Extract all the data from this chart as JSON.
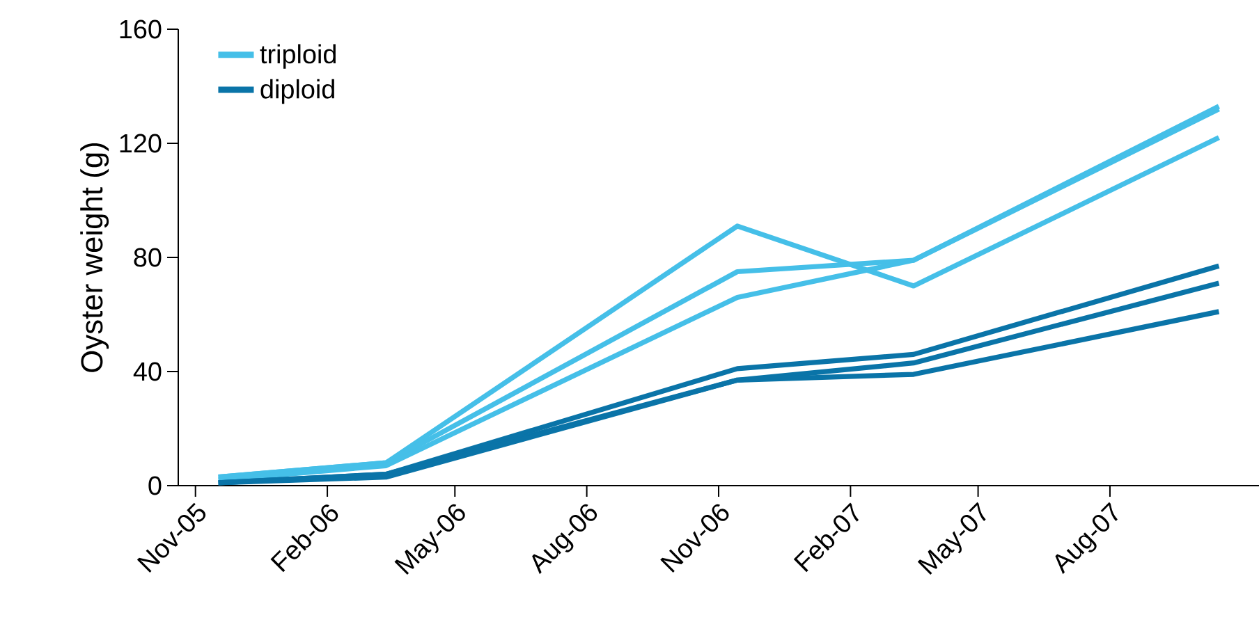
{
  "chart_data": {
    "type": "line",
    "ylabel": "Oyster weight (g)",
    "xlim": [
      "2005-10-20",
      "2007-11-13"
    ],
    "xticks": [
      {
        "value": "2005-11-01",
        "label": "Nov-05"
      },
      {
        "value": "2006-02-01",
        "label": "Feb-06"
      },
      {
        "value": "2006-05-01",
        "label": "May-06"
      },
      {
        "value": "2006-08-01",
        "label": "Aug-06"
      },
      {
        "value": "2006-11-01",
        "label": "Nov-06"
      },
      {
        "value": "2007-02-01",
        "label": "Feb-07"
      },
      {
        "value": "2007-05-01",
        "label": "May-07"
      },
      {
        "value": "2007-08-01",
        "label": "Aug-07"
      }
    ],
    "ylim": [
      0,
      160
    ],
    "yticks": [
      0,
      40,
      80,
      120,
      160
    ],
    "x": [
      "2005-11-17",
      "2006-03-14",
      "2006-11-14",
      "2007-03-17",
      "2007-10-16"
    ],
    "series": [
      {
        "name": "triploid",
        "color": "#45bfe8",
        "values": [
          3,
          8,
          91,
          70,
          122
        ]
      },
      {
        "color": "#45bfe8",
        "values": [
          3,
          8,
          75,
          79,
          133
        ]
      },
      {
        "color": "#45bfe8",
        "values": [
          2,
          7,
          66,
          79,
          132
        ]
      },
      {
        "name": "diploid",
        "color": "#0a74a8",
        "values": [
          1,
          4,
          41,
          46,
          77
        ]
      },
      {
        "color": "#0a74a8",
        "values": [
          1,
          4,
          37,
          43,
          71
        ]
      },
      {
        "color": "#0a74a8",
        "values": [
          1,
          3,
          37,
          39,
          61
        ]
      }
    ],
    "legend": "top left",
    "grid": false,
    "marker": "none",
    "line_style": "solid"
  }
}
